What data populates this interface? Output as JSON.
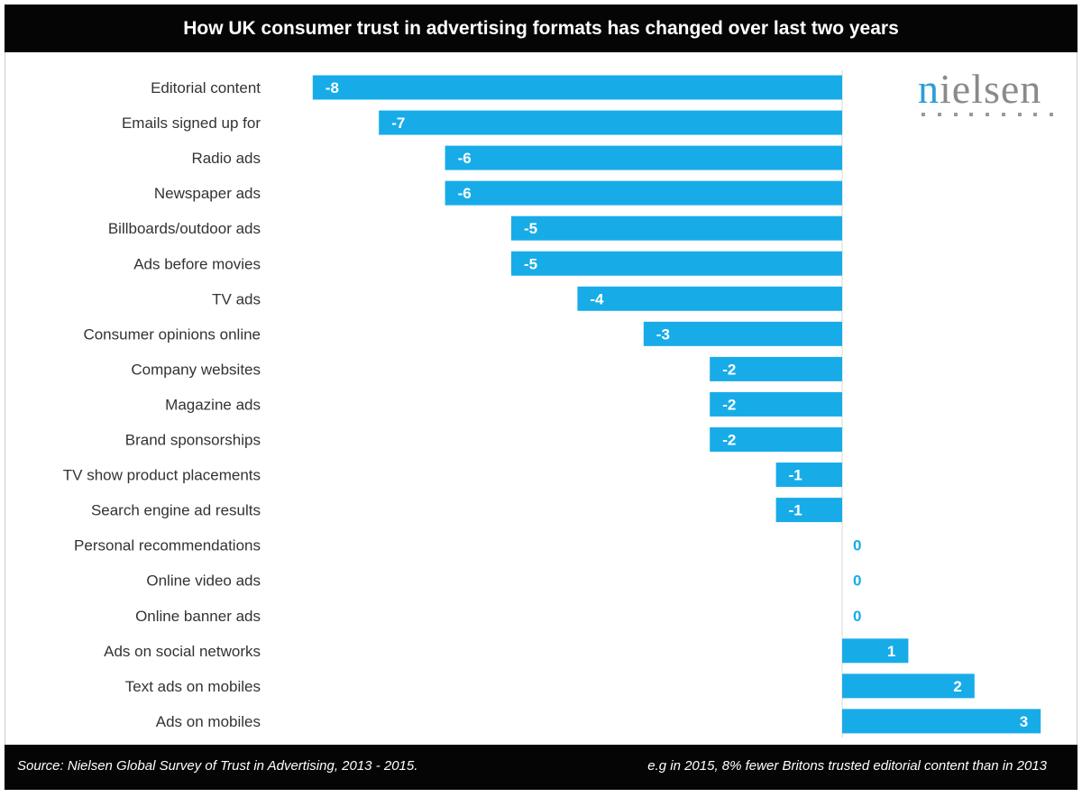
{
  "chart_data": {
    "type": "bar",
    "orientation": "horizontal",
    "title": "How UK consumer trust in advertising formats has changed over last two years",
    "categories": [
      "Editorial content",
      "Emails signed up for",
      "Radio ads",
      "Newspaper ads",
      "Billboards/outdoor ads",
      "Ads before movies",
      "TV ads",
      "Consumer opinions online",
      "Company websites",
      "Magazine ads",
      "Brand sponsorships",
      "TV show product placements",
      "Search engine ad results",
      "Personal recommendations",
      "Online video ads",
      "Online banner ads",
      "Ads on social networks",
      "Text ads on mobiles",
      "Ads on mobiles"
    ],
    "values": [
      -8,
      -7,
      -6,
      -6,
      -5,
      -5,
      -4,
      -3,
      -2,
      -2,
      -2,
      -1,
      -1,
      0,
      0,
      0,
      1,
      2,
      3
    ],
    "xlim": [
      -8,
      3
    ],
    "xlabel": "",
    "ylabel": "",
    "grid": false,
    "bar_color": "#17ace8",
    "zero_label_color": "#17ace8"
  },
  "logo": "nielsen",
  "footer": {
    "source": "Source: Nielsen Global Survey of Trust in Advertising, 2013 - 2015.",
    "note": "e.g in 2015, 8% fewer Britons trusted editorial content than in 2013"
  }
}
